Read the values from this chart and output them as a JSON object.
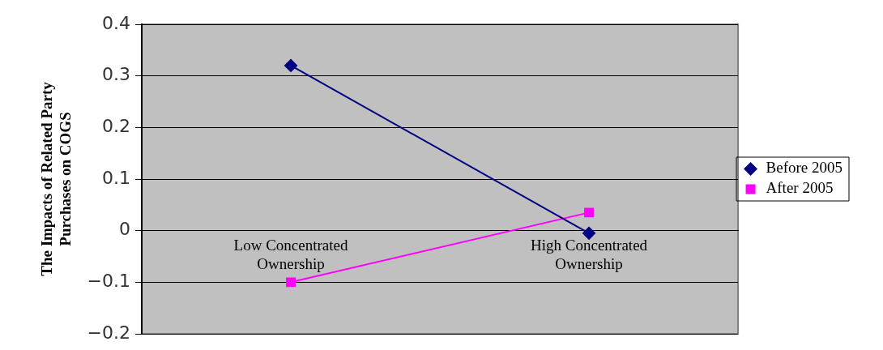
{
  "chart_data": {
    "type": "line",
    "ylabel": "The Impacts of Related Party Purchases on COGS",
    "categories": [
      "Low Concentrated Ownership",
      "High Concentrated Ownership"
    ],
    "series": [
      {
        "name": "Before 2005",
        "color": "#000080",
        "values": [
          0.32,
          -0.005
        ],
        "marker": "diamond"
      },
      {
        "name": "After 2005",
        "color": "#ff00ff",
        "values": [
          -0.1,
          0.035
        ],
        "marker": "square"
      }
    ],
    "ylim": [
      -0.2,
      0.4
    ],
    "yticks": [
      -0.2,
      -0.1,
      0,
      0.1,
      0.2,
      0.3,
      0.4
    ],
    "grid": "y",
    "legend": "right",
    "line_style": "solid"
  }
}
